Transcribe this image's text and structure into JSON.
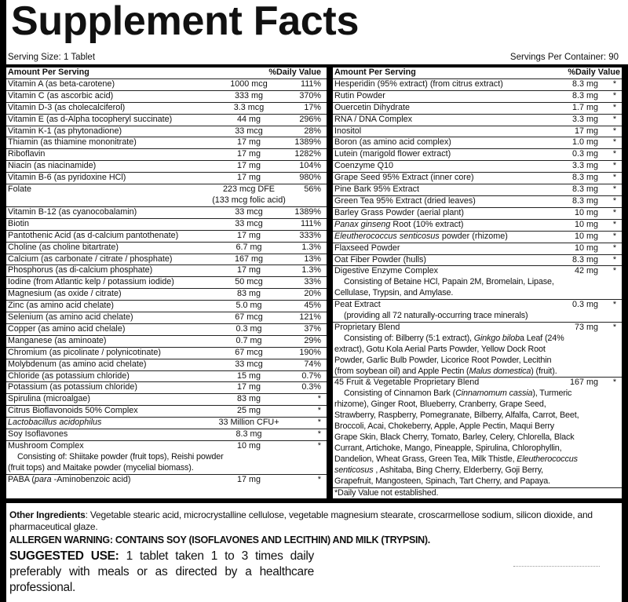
{
  "title": "Supplement Facts",
  "serving_size": "Serving Size: 1 Tablet",
  "servings_per_container": "Servings Per Container: 90",
  "header": {
    "amount": "Amount Per Serving",
    "dv": "%Daily Value"
  },
  "left_rows": [
    {
      "name": [
        {
          "text": "Vitamin A (as beta-carotene)"
        }
      ],
      "amount": "1000 mcg",
      "dv": "111%"
    },
    {
      "name": [
        {
          "text": "Vitamin C (as ascorbic acid)"
        }
      ],
      "amount": "333 mg",
      "dv": "370%"
    },
    {
      "name": [
        {
          "text": "Vitamin D-3 (as cholecalciferol)"
        }
      ],
      "amount": "3.3 mcg",
      "dv": "17%"
    },
    {
      "name": [
        {
          "text": "Vitamin E (as d-Alpha tocopheryl succinate)"
        }
      ],
      "amount": "44 mg",
      "dv": "296%"
    },
    {
      "name": [
        {
          "text": "Vitamin K-1 (as phytonadione)"
        }
      ],
      "amount": "33 mcg",
      "dv": "28%"
    },
    {
      "name": [
        {
          "text": "Thiamin (as thiamine mononitrate)"
        }
      ],
      "amount": "17 mg",
      "dv": "1389%"
    },
    {
      "name": [
        {
          "text": "Riboflavin"
        }
      ],
      "amount": "17 mg",
      "dv": "1282%"
    },
    {
      "name": [
        {
          "text": "Niacin (as niacinamide)"
        }
      ],
      "amount": "17 mg",
      "dv": "104%"
    },
    {
      "name": [
        {
          "text": "Vitamin B-6 (as pyridoxine HCl)"
        }
      ],
      "amount": "17 mg",
      "dv": "980%"
    },
    {
      "name": [
        {
          "text": "Folate"
        }
      ],
      "amount": "223 mcg DFE",
      "amount2": "(133 mcg  folic acid)",
      "dv": "56%"
    },
    {
      "name": [
        {
          "text": "Vitamin B-12 (as cyanocobalamin)"
        }
      ],
      "amount": "33 mcg",
      "dv": "1389%"
    },
    {
      "name": [
        {
          "text": "Biotin"
        }
      ],
      "amount": "33 mcg",
      "dv": "111%"
    },
    {
      "name": [
        {
          "text": "Pantothenic Acid (as d-calcium pantothenate)"
        }
      ],
      "amount": "17 mg",
      "dv": "333%"
    },
    {
      "name": [
        {
          "text": "Choline (as choline bitartrate)"
        }
      ],
      "amount": "6.7 mg",
      "dv": "1.3%"
    },
    {
      "name": [
        {
          "text": "Calcium (as carbonate / citrate / phosphate)"
        }
      ],
      "amount": "167 mg",
      "dv": "13%"
    },
    {
      "name": [
        {
          "text": "Phosphorus (as di-calcium phosphate)"
        }
      ],
      "amount": "17 mg",
      "dv": "1.3%"
    },
    {
      "name": [
        {
          "text": "Iodine (from Atlantic kelp / potassium iodide)"
        }
      ],
      "amount": "50 mcg",
      "dv": "33%"
    },
    {
      "name": [
        {
          "text": "Magnesium (as oxide / citrate)"
        }
      ],
      "amount": "83 mg",
      "dv": "20%"
    },
    {
      "name": [
        {
          "text": "Zinc (as amino acid chelate)"
        }
      ],
      "amount": "5.0 mg",
      "dv": "45%"
    },
    {
      "name": [
        {
          "text": "Selenium (as amino acid chelate)"
        }
      ],
      "amount": "67 mcg",
      "dv": "121%"
    },
    {
      "name": [
        {
          "text": "Copper (as amino acid chelale)"
        }
      ],
      "amount": "0.3 mg",
      "dv": "37%"
    },
    {
      "name": [
        {
          "text": "Manganese (as aminoate)"
        }
      ],
      "amount": "0.7 mg",
      "dv": "29%"
    },
    {
      "name": [
        {
          "text": "Chromium (as picolinate / polynicotinate)"
        }
      ],
      "amount": "67 mcg",
      "dv": "190%"
    },
    {
      "name": [
        {
          "text": "Molybdenum (as amino acid chelate)"
        }
      ],
      "amount": "33 mcg",
      "dv": "74%"
    },
    {
      "name": [
        {
          "text": "Chloride (as potassium chloride)"
        }
      ],
      "amount": "15 mg",
      "dv": "0.7%"
    },
    {
      "name": [
        {
          "text": "Potassium (as potassium chloride)"
        }
      ],
      "amount": "17 mg",
      "dv": "0.3%"
    },
    {
      "name": [
        {
          "text": "Spirulina (microalgae)"
        }
      ],
      "amount": "83 mg",
      "dv": "*"
    },
    {
      "name": [
        {
          "text": "Citrus Bioflavonoids 50% Complex"
        }
      ],
      "amount": "25 mg",
      "dv": "*"
    },
    {
      "name": [
        {
          "text": "Lactobacillus acidophilus",
          "italic": true
        }
      ],
      "amount": "33 Million CFU+",
      "dv": "*"
    },
    {
      "name": [
        {
          "text": "Soy Isoflavones"
        }
      ],
      "amount": "8.3 mg",
      "dv": "*"
    },
    {
      "name": [
        {
          "text": "Mushroom Complex"
        }
      ],
      "amount": "10 mg",
      "dv": "*",
      "note": [
        [
          {
            "text": "Consisting of: Shiitake powder (fruit tops), Reishi powder"
          }
        ],
        [
          {
            "text": "(fruit tops) and Maitake powder (mycelial biomass)."
          }
        ]
      ]
    },
    {
      "name": [
        {
          "text": "PABA ("
        },
        {
          "text": "para",
          "italic": true
        },
        {
          "text": " -Aminobenzoic acid)"
        }
      ],
      "amount": "17 mg",
      "dv": "*",
      "last": true
    }
  ],
  "right_rows": [
    {
      "name": [
        {
          "text": "Hesperidin (95% extract) (from citrus extract)"
        }
      ],
      "amount": "8.3 mg",
      "dv": "*"
    },
    {
      "name": [
        {
          "text": "Rutin Powder"
        }
      ],
      "amount": "8.3 mg",
      "dv": "*"
    },
    {
      "name": [
        {
          "text": "Ouercetin Dihydrate"
        }
      ],
      "amount": "1.7 mg",
      "dv": "*"
    },
    {
      "name": [
        {
          "text": "RNA / DNA Complex"
        }
      ],
      "amount": "3.3 mg",
      "dv": "*"
    },
    {
      "name": [
        {
          "text": "Inositol"
        }
      ],
      "amount": "17 mg",
      "dv": "*"
    },
    {
      "name": [
        {
          "text": "Boron (as amino acid complex)"
        }
      ],
      "amount": "1.0 mg",
      "dv": "*"
    },
    {
      "name": [
        {
          "text": "Lutein (marigold flower extract)"
        }
      ],
      "amount": "0.3 mg",
      "dv": "*"
    },
    {
      "name": [
        {
          "text": "Coenzyme Q10"
        }
      ],
      "amount": "3.3 mg",
      "dv": "*"
    },
    {
      "name": [
        {
          "text": "Grape Seed 95% Extract (inner core)"
        }
      ],
      "amount": "8.3 mg",
      "dv": "*"
    },
    {
      "name": [
        {
          "text": "Pine Bark 95% Extract"
        }
      ],
      "amount": "8.3 mg",
      "dv": "*"
    },
    {
      "name": [
        {
          "text": "Green Tea 95% Extract (dried leaves)"
        }
      ],
      "amount": "8.3 mg",
      "dv": "*"
    },
    {
      "name": [
        {
          "text": "Barley Grass Powder (aerial plant)"
        }
      ],
      "amount": "10 mg",
      "dv": "*"
    },
    {
      "name": [
        {
          "text": "Panax ginseng",
          "italic": true
        },
        {
          "text": " Root (10% extract)"
        }
      ],
      "amount": "10 mg",
      "dv": "*"
    },
    {
      "name": [
        {
          "text": "Eleutherococcus senticosus",
          "italic": true
        },
        {
          "text": " powder (rhizome)"
        }
      ],
      "amount": "10 mg",
      "dv": "*"
    },
    {
      "name": [
        {
          "text": "Flaxseed Powder"
        }
      ],
      "amount": "10 mg",
      "dv": "*"
    },
    {
      "name": [
        {
          "text": "Oat Fiber Powder (hulls)"
        }
      ],
      "amount": "8.3 mg",
      "dv": "*"
    },
    {
      "name": [
        {
          "text": "Digestive Enzyme Complex"
        }
      ],
      "amount": "42 mg",
      "dv": "*",
      "note": [
        [
          {
            "text": "Consisting of Betaine HCl, Papain 2M, Bromelain, Lipase,"
          }
        ],
        [
          {
            "text": "Cellulase, Trypsin, and Amylase."
          }
        ]
      ]
    },
    {
      "name": [
        {
          "text": "Peat Extract"
        }
      ],
      "amount": "0.3 mg",
      "dv": "*",
      "note": [
        [
          {
            "text": "(providing all 72 naturally-occurring trace minerals)"
          }
        ]
      ]
    },
    {
      "name": [
        {
          "text": "Proprietary Blend"
        }
      ],
      "amount": "73 mg",
      "dv": "*",
      "note": [
        [
          {
            "text": "Consisting of: Bilberry (5:1 extract), "
          },
          {
            "text": "Ginkgo bilob",
            "italic": true
          },
          {
            "text": "a Leaf (24%"
          }
        ],
        [
          {
            "text": "extract), Gotu Kola Aerial Parts Powder, Yellow Dock Root"
          }
        ],
        [
          {
            "text": "Powder, Garlic Bulb Powder, Licorice Root Powder, Lecithin"
          }
        ],
        [
          {
            "text": "(from soybean oil) and Apple Pectin ("
          },
          {
            "text": "Malus domestica",
            "italic": true
          },
          {
            "text": ") (fruit)."
          }
        ]
      ]
    },
    {
      "name": [
        {
          "text": "45 Fruit & Vegetable Proprietary Blend"
        }
      ],
      "amount": "167 mg",
      "dv": "*",
      "note": [
        [
          {
            "text": "Consisting of Cinnamon Bark ("
          },
          {
            "text": "Cinnamomum cassia",
            "italic": true
          },
          {
            "text": "), Turmeric"
          }
        ],
        [
          {
            "text": "rhizome), Ginger Root, Blueberry, Cranberry, Grape Seed,"
          }
        ],
        [
          {
            "text": "Strawberry, Raspberry, Pomegranate, Bilberry, Alfalfa, Carrot, Beet,"
          }
        ],
        [
          {
            "text": "Broccoli, Acai, Chokeberry, Apple, Apple Pectin, Maqui Berry"
          }
        ],
        [
          {
            "text": "Grape Skin, Black Cherry, Tomato, Barley, Celery, Chlorella, Black"
          }
        ],
        [
          {
            "text": "Currant, Artichoke, Mango, Pineapple, Spirulina, Chlorophyllin,"
          }
        ],
        [
          {
            "text": "Dandelion, Wheat Grass, Green Tea, Milk Thistle, "
          },
          {
            "text": "Eleutherococcus",
            "italic": true
          }
        ],
        [
          {
            "text": "senticosus",
            "italic": true
          },
          {
            "text": " , Ashitaba, Bing Cherry, Elderberry, Goji Berry,"
          }
        ],
        [
          {
            "text": "Grapefruit, Mangosteen, Spinach, Tart Cherry, and Papaya."
          }
        ]
      ]
    }
  ],
  "footnote": "*Daily Value not established.",
  "other_ingredients": {
    "label": "Other Ingredients",
    "text": ": Vegetable stearic acid, microcrystalline cellulose, vegetable magnesium stearate, croscarmellose sodium, silicon dioxide, and pharmaceutical glaze."
  },
  "allergen": "ALLERGEN WARNING: CONTAINS SOY (ISOFLAVONES AND LECITHIN) AND MILK (TRYPSIN).",
  "suggested_use": {
    "label": "SUGGESTED USE:",
    "text": " 1 tablet taken 1 to 3 times daily preferably with meals or as directed by a healthcare professional."
  }
}
